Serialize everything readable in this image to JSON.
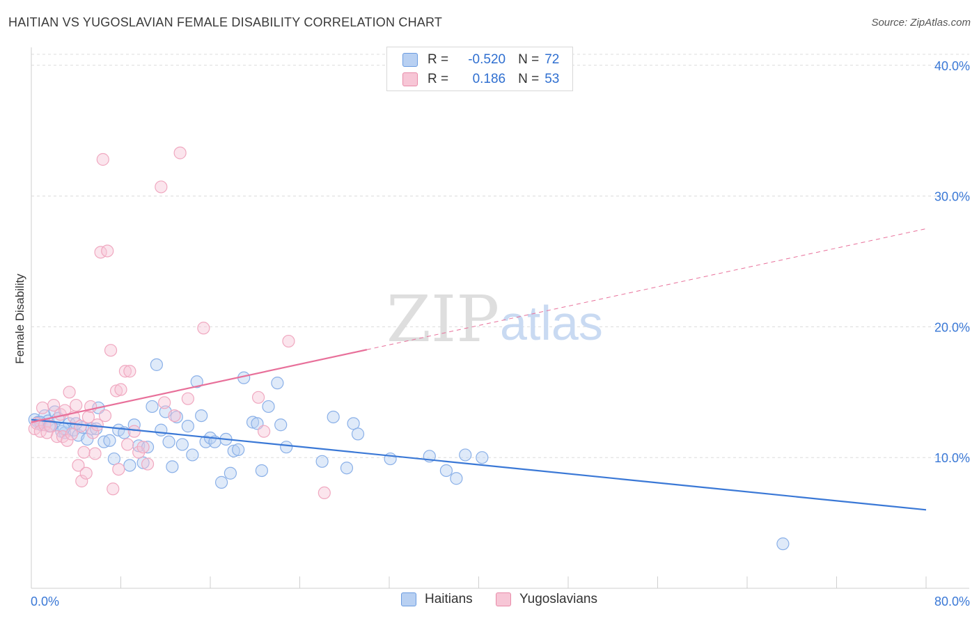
{
  "title": "HAITIAN VS YUGOSLAVIAN FEMALE DISABILITY CORRELATION CHART",
  "source": "Source: ZipAtlas.com",
  "watermark": {
    "zip": "ZIP",
    "atlas": "atlas"
  },
  "legend": {
    "rows": [
      {
        "r_label": "R =",
        "r_value": "-0.520",
        "n_label": "N =",
        "n_value": "72",
        "color": "#6a9be0",
        "fill": "#b8d0f2"
      },
      {
        "r_label": "R =",
        "r_value": "0.186",
        "n_label": "N =",
        "n_value": "53",
        "color": "#e88aa8",
        "fill": "#f7c6d6"
      }
    ]
  },
  "bottom_legend": {
    "haitians": "Haitians",
    "yugoslavians": "Yugoslavians"
  },
  "colors": {
    "blue": "#3a78d6",
    "blue_point": "#8ab0e8",
    "pink": "#e8709a",
    "pink_point": "#f0a8c0",
    "grid": "#dcdcdc",
    "tick_text": "#3a78d6"
  },
  "chart_data": {
    "type": "scatter",
    "title": "HAITIAN VS YUGOSLAVIAN FEMALE DISABILITY CORRELATION CHART",
    "xlabel": "",
    "ylabel": "Female Disability",
    "xlim": [
      0,
      80
    ],
    "ylim": [
      0,
      41
    ],
    "x_tick_labels": [
      "0.0%",
      "80.0%"
    ],
    "y_ticks": [
      10,
      20,
      30,
      40
    ],
    "y_tick_labels": [
      "10.0%",
      "20.0%",
      "30.0%",
      "40.0%"
    ],
    "grid": true,
    "legend_position": "top-center",
    "series": [
      {
        "name": "Haitians",
        "color": "#3a78d6",
        "trend": {
          "x0": 0,
          "y0": 12.9,
          "x1": 80,
          "y1": 6.0,
          "dashed_from": null
        },
        "points": [
          [
            0.3,
            12.9
          ],
          [
            0.6,
            12.7
          ],
          [
            0.9,
            12.5
          ],
          [
            1.2,
            13.2
          ],
          [
            1.5,
            12.8
          ],
          [
            1.8,
            12.4
          ],
          [
            2.1,
            13.5
          ],
          [
            2.4,
            13.0
          ],
          [
            2.7,
            12.0
          ],
          [
            3.0,
            11.9
          ],
          [
            3.4,
            12.6
          ],
          [
            3.8,
            12.1
          ],
          [
            4.2,
            11.7
          ],
          [
            4.6,
            12.3
          ],
          [
            5.0,
            11.4
          ],
          [
            5.4,
            12.2
          ],
          [
            6.0,
            13.8
          ],
          [
            6.5,
            11.2
          ],
          [
            7.0,
            11.3
          ],
          [
            7.4,
            9.9
          ],
          [
            7.8,
            12.1
          ],
          [
            8.3,
            11.9
          ],
          [
            8.8,
            9.4
          ],
          [
            9.2,
            12.5
          ],
          [
            9.6,
            10.9
          ],
          [
            10.0,
            9.6
          ],
          [
            10.4,
            10.8
          ],
          [
            10.8,
            13.9
          ],
          [
            11.2,
            17.1
          ],
          [
            11.6,
            12.1
          ],
          [
            12.0,
            13.5
          ],
          [
            12.3,
            11.2
          ],
          [
            12.6,
            9.3
          ],
          [
            13.0,
            13.1
          ],
          [
            13.5,
            11.0
          ],
          [
            14.0,
            12.4
          ],
          [
            14.4,
            10.2
          ],
          [
            14.8,
            15.8
          ],
          [
            15.2,
            13.2
          ],
          [
            15.6,
            11.2
          ],
          [
            16.0,
            11.5
          ],
          [
            16.4,
            11.2
          ],
          [
            17.0,
            8.1
          ],
          [
            17.4,
            11.4
          ],
          [
            17.8,
            8.8
          ],
          [
            18.1,
            10.5
          ],
          [
            18.5,
            10.6
          ],
          [
            19.0,
            16.1
          ],
          [
            19.8,
            12.7
          ],
          [
            20.2,
            12.6
          ],
          [
            20.6,
            9.0
          ],
          [
            21.2,
            13.9
          ],
          [
            22.0,
            15.7
          ],
          [
            22.3,
            12.5
          ],
          [
            22.8,
            10.8
          ],
          [
            26.0,
            9.7
          ],
          [
            27.0,
            13.1
          ],
          [
            28.2,
            9.2
          ],
          [
            28.8,
            12.6
          ],
          [
            29.2,
            11.8
          ],
          [
            32.1,
            9.9
          ],
          [
            35.6,
            10.1
          ],
          [
            37.1,
            9.0
          ],
          [
            38.0,
            8.4
          ],
          [
            38.8,
            10.2
          ],
          [
            40.3,
            10.0
          ],
          [
            67.2,
            3.4
          ],
          [
            0.8,
            12.7
          ],
          [
            1.6,
            12.4
          ],
          [
            2.9,
            12.2
          ],
          [
            4.0,
            12.6
          ],
          [
            5.8,
            12.2
          ]
        ]
      },
      {
        "name": "Yugoslavians",
        "color": "#e8709a",
        "trend": {
          "x0": 0,
          "y0": 12.7,
          "x1": 80,
          "y1": 27.5,
          "dashed_from": 30
        },
        "points": [
          [
            0.3,
            12.2
          ],
          [
            0.5,
            12.6
          ],
          [
            0.8,
            12.0
          ],
          [
            1.0,
            13.8
          ],
          [
            1.2,
            12.5
          ],
          [
            1.4,
            11.9
          ],
          [
            1.7,
            12.4
          ],
          [
            2.0,
            14.0
          ],
          [
            2.3,
            11.6
          ],
          [
            2.6,
            13.3
          ],
          [
            2.8,
            11.6
          ],
          [
            3.0,
            13.6
          ],
          [
            3.2,
            11.3
          ],
          [
            3.4,
            15.0
          ],
          [
            3.6,
            11.8
          ],
          [
            3.8,
            13.1
          ],
          [
            4.0,
            14.0
          ],
          [
            4.2,
            9.4
          ],
          [
            4.4,
            12.4
          ],
          [
            4.5,
            8.2
          ],
          [
            4.7,
            10.4
          ],
          [
            4.9,
            8.8
          ],
          [
            5.1,
            13.1
          ],
          [
            5.3,
            13.9
          ],
          [
            5.5,
            11.9
          ],
          [
            5.7,
            10.3
          ],
          [
            5.9,
            12.5
          ],
          [
            6.2,
            25.7
          ],
          [
            6.4,
            32.8
          ],
          [
            6.6,
            13.2
          ],
          [
            6.8,
            25.8
          ],
          [
            7.1,
            18.2
          ],
          [
            7.3,
            7.6
          ],
          [
            7.6,
            15.1
          ],
          [
            7.8,
            9.1
          ],
          [
            8.0,
            15.2
          ],
          [
            8.4,
            16.6
          ],
          [
            8.6,
            11.0
          ],
          [
            8.8,
            16.6
          ],
          [
            9.2,
            12.0
          ],
          [
            9.6,
            10.4
          ],
          [
            10.0,
            10.8
          ],
          [
            10.4,
            9.5
          ],
          [
            11.6,
            30.7
          ],
          [
            11.9,
            14.2
          ],
          [
            12.8,
            13.2
          ],
          [
            13.3,
            33.3
          ],
          [
            14.0,
            14.5
          ],
          [
            15.4,
            19.9
          ],
          [
            20.3,
            14.6
          ],
          [
            20.8,
            12.0
          ],
          [
            23.0,
            18.9
          ],
          [
            26.2,
            7.3
          ]
        ]
      }
    ]
  }
}
